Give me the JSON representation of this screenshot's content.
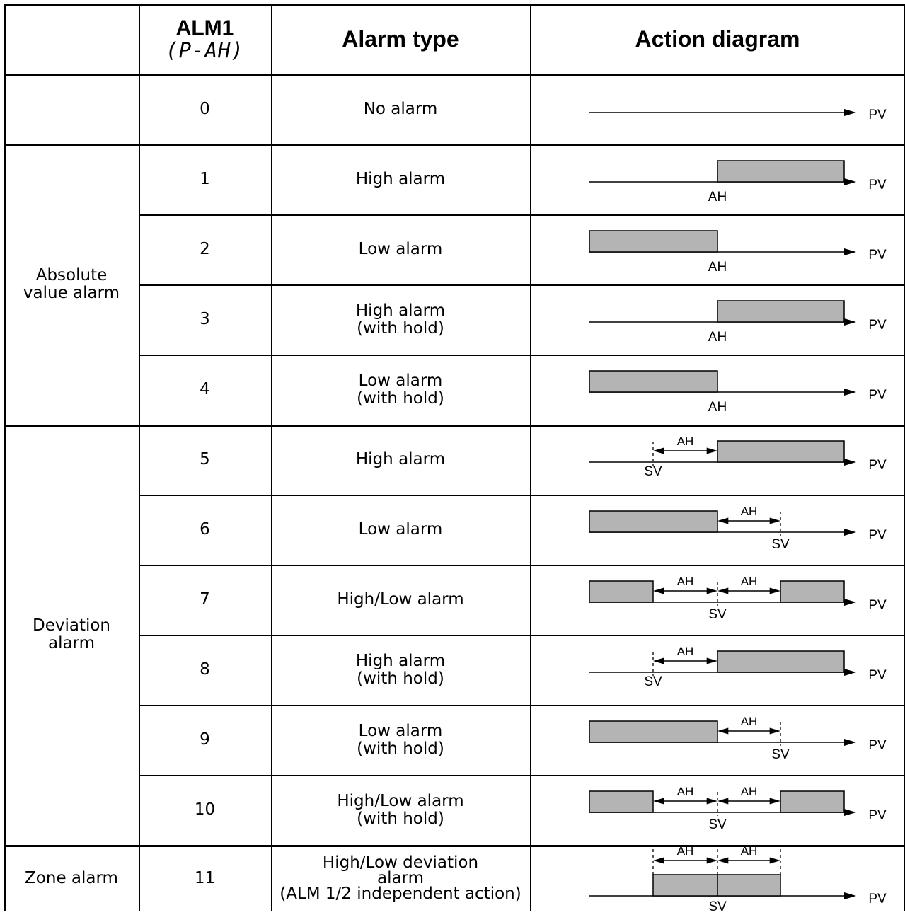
{
  "header": {
    "col1": "",
    "alm_title": "ALM1",
    "alm_sub": "(P-AH)",
    "alarm_type": "Alarm type",
    "action_diagram": "Action diagram"
  },
  "groups": [
    {
      "label": ""
    },
    {
      "label": "Absolute\nvalue alarm"
    },
    {
      "label": "Deviation\nalarm"
    },
    {
      "label": "Zone alarm"
    }
  ],
  "rows": [
    {
      "code": "0",
      "type": "No alarm",
      "diagram": "none"
    },
    {
      "code": "1",
      "type": "High alarm",
      "diagram": "abs-high"
    },
    {
      "code": "2",
      "type": "Low alarm",
      "diagram": "abs-low"
    },
    {
      "code": "3",
      "type": "High alarm\n(with hold)",
      "diagram": "abs-high"
    },
    {
      "code": "4",
      "type": "Low alarm\n(with hold)",
      "diagram": "abs-low"
    },
    {
      "code": "5",
      "type": "High alarm",
      "diagram": "dev-high"
    },
    {
      "code": "6",
      "type": "Low alarm",
      "diagram": "dev-low"
    },
    {
      "code": "7",
      "type": "High/Low alarm",
      "diagram": "dev-highlow"
    },
    {
      "code": "8",
      "type": "High alarm\n(with hold)",
      "diagram": "dev-high"
    },
    {
      "code": "9",
      "type": "Low alarm\n(with hold)",
      "diagram": "dev-low"
    },
    {
      "code": "10",
      "type": "High/Low alarm\n(with hold)",
      "diagram": "dev-highlow"
    },
    {
      "code": "11",
      "type": "High/Low deviation\nalarm\n(ALM 1/2 independent action)",
      "diagram": "zone"
    }
  ],
  "diagram_labels": {
    "pv": "PV",
    "ah": "AH",
    "sv": "SV"
  },
  "colors": {
    "alarm_box": "#b4b4b4",
    "line": "#000000"
  }
}
